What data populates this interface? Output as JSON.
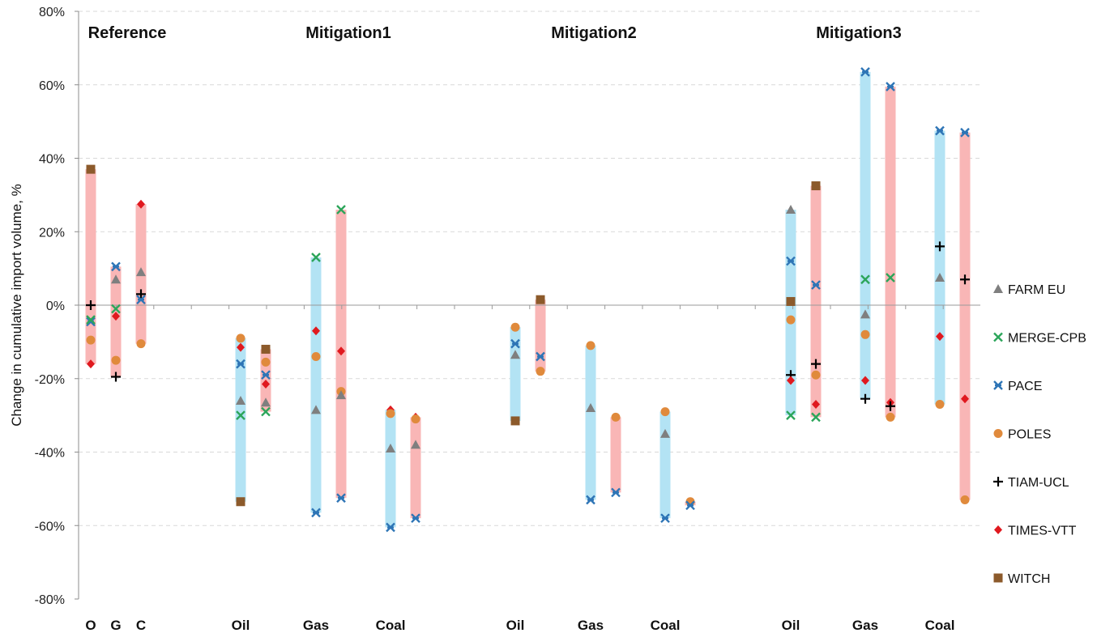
{
  "chart_data": {
    "type": "scatter",
    "ylabel": "Change in cumulative import volume, %",
    "ylim": [
      -80,
      80
    ],
    "yticks": [
      80,
      60,
      40,
      20,
      0,
      -20,
      -40,
      -60,
      -80
    ],
    "ytick_labels": [
      "80%",
      "60%",
      "40%",
      "20%",
      "0%",
      "-20%",
      "-40%",
      "-60%",
      "-80%"
    ],
    "grid": "horizontal dashed",
    "legend_position": "right",
    "scenarios": [
      "Reference",
      "Mitigation1",
      "Mitigation2",
      "Mitigation3"
    ],
    "series": [
      {
        "name": "FARM EU",
        "marker": "triangle",
        "color": "#7f7f7f"
      },
      {
        "name": "MERGE-CPB",
        "marker": "x",
        "color": "#2ca55a"
      },
      {
        "name": "PACE",
        "marker": "star-x",
        "color": "#2e75b6"
      },
      {
        "name": "POLES",
        "marker": "circle",
        "color": "#e08a3c"
      },
      {
        "name": "TIAM-UCL",
        "marker": "plus",
        "color": "#000000"
      },
      {
        "name": "TIMES-VTT",
        "marker": "diamond",
        "color": "#e0191f"
      },
      {
        "name": "WITCH",
        "marker": "square",
        "color": "#8c5a2b"
      }
    ],
    "groups": [
      {
        "label": "O",
        "columns": [
          {
            "band": "pink",
            "range": [
              -16,
              37
            ],
            "values": {
              "WITCH": 37,
              "TIAM-UCL": 0,
              "PACE": -4.5,
              "MERGE-CPB": -4,
              "POLES": -9.5,
              "TIMES-VTT": -16
            }
          }
        ]
      },
      {
        "label": "G",
        "columns": [
          {
            "band": "pink",
            "range": [
              -19.5,
              10.5
            ],
            "values": {
              "PACE": 10.5,
              "FARM EU": 7,
              "MERGE-CPB": -1,
              "TIMES-VTT": -3,
              "POLES": -15,
              "TIAM-UCL": -19.5
            }
          }
        ]
      },
      {
        "label": "C",
        "columns": [
          {
            "band": "pink",
            "range": [
              -10.5,
              27.5
            ],
            "values": {
              "TIMES-VTT": 27.5,
              "FARM EU": 9,
              "TIAM-UCL": 3,
              "PACE": 1.5,
              "POLES": -10.5
            }
          }
        ]
      },
      {
        "label": "Oil",
        "columns": [
          {
            "band": "blue",
            "range": [
              -53.5,
              -9
            ],
            "values": {
              "POLES": -9,
              "TIMES-VTT": -11.5,
              "PACE": -16,
              "FARM EU": -26,
              "MERGE-CPB": -30,
              "WITCH": -53.5
            }
          },
          {
            "band": "pink",
            "range": [
              -29,
              -12
            ],
            "values": {
              "WITCH": -12,
              "POLES": -15.5,
              "PACE": -19,
              "TIMES-VTT": -21.5,
              "FARM EU": -26.5,
              "MERGE-CPB": -29
            }
          }
        ]
      },
      {
        "label": "Gas",
        "columns": [
          {
            "band": "blue",
            "range": [
              -56.5,
              13
            ],
            "values": {
              "MERGE-CPB": 13,
              "TIMES-VTT": -7,
              "POLES": -14,
              "FARM EU": -28.5,
              "PACE": -56.5
            }
          },
          {
            "band": "pink",
            "range": [
              -52.5,
              26
            ],
            "values": {
              "MERGE-CPB": 26,
              "TIMES-VTT": -12.5,
              "POLES": -23.5,
              "FARM EU": -24.5,
              "PACE": -52.5
            }
          }
        ]
      },
      {
        "label": "Coal",
        "columns": [
          {
            "band": "blue",
            "range": [
              -60.5,
              -28.5
            ],
            "values": {
              "TIMES-VTT": -28.5,
              "POLES": -29.5,
              "FARM EU": -39,
              "PACE": -60.5
            }
          },
          {
            "band": "pink",
            "range": [
              -58,
              -30.5
            ],
            "values": {
              "TIMES-VTT": -30.5,
              "POLES": -31,
              "FARM EU": -38,
              "PACE": -58
            }
          }
        ]
      },
      {
        "label": "Oil",
        "columns": [
          {
            "band": "blue",
            "range": [
              -31.5,
              -6
            ],
            "values": {
              "POLES": -6,
              "PACE": -10.5,
              "FARM EU": -13.5,
              "WITCH": -31.5
            }
          },
          {
            "band": "pink",
            "range": [
              -18,
              1.5
            ],
            "values": {
              "WITCH": 1.5,
              "PACE": -14,
              "POLES": -18
            }
          }
        ]
      },
      {
        "label": "Gas",
        "columns": [
          {
            "band": "blue",
            "range": [
              -53,
              -11
            ],
            "values": {
              "POLES": -11,
              "FARM EU": -28,
              "PACE": -53
            }
          },
          {
            "band": "pink",
            "range": [
              -51,
              -30.5
            ],
            "values": {
              "POLES": -30.5,
              "PACE": -51
            }
          }
        ]
      },
      {
        "label": "Coal",
        "columns": [
          {
            "band": "blue",
            "range": [
              -58,
              -29
            ],
            "values": {
              "POLES": -29,
              "FARM EU": -35,
              "PACE": -58
            }
          },
          {
            "band": "pink",
            "range": [
              -54.5,
              -53.5
            ],
            "values": {
              "POLES": -53.5,
              "PACE": -54.5
            }
          }
        ]
      },
      {
        "label": "Oil",
        "columns": [
          {
            "band": "blue",
            "range": [
              -30,
              26
            ],
            "values": {
              "FARM EU": 26,
              "PACE": 12,
              "WITCH": 1,
              "POLES": -4,
              "TIAM-UCL": -19,
              "TIMES-VTT": -20.5,
              "MERGE-CPB": -30
            }
          },
          {
            "band": "pink",
            "range": [
              -30.5,
              32.5
            ],
            "values": {
              "WITCH": 32.5,
              "PACE": 5.5,
              "TIAM-UCL": -16,
              "POLES": -19,
              "TIMES-VTT": -27,
              "MERGE-CPB": -30.5
            }
          }
        ]
      },
      {
        "label": "Gas",
        "columns": [
          {
            "band": "blue",
            "range": [
              -25.5,
              63.5
            ],
            "values": {
              "PACE": 63.5,
              "MERGE-CPB": 7,
              "FARM EU": -2.5,
              "POLES": -8,
              "TIMES-VTT": -20.5,
              "TIAM-UCL": -25.5
            }
          },
          {
            "band": "pink",
            "range": [
              -30.5,
              59.5
            ],
            "values": {
              "PACE": 59.5,
              "MERGE-CPB": 7.5,
              "TIMES-VTT": -26.5,
              "TIAM-UCL": -27.5,
              "POLES": -30.5
            }
          }
        ]
      },
      {
        "label": "Coal",
        "columns": [
          {
            "band": "blue",
            "range": [
              -27,
              47.5
            ],
            "values": {
              "PACE": 47.5,
              "TIAM-UCL": 16,
              "FARM EU": 7.5,
              "TIMES-VTT": -8.5,
              "POLES": -27
            }
          },
          {
            "band": "pink",
            "range": [
              -53,
              47
            ],
            "values": {
              "PACE": 47,
              "TIAM-UCL": 7,
              "TIMES-VTT": -25.5,
              "POLES": -53
            }
          }
        ]
      }
    ]
  }
}
